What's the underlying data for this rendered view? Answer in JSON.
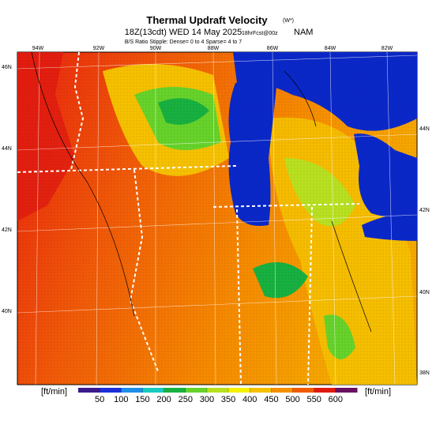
{
  "header": {
    "title": "Thermal Updraft Velocity",
    "title_unit": "(W*)",
    "valid_time": "18Z(13cdt) WED 14 May 2025",
    "forecast": "18hrFcst@00z",
    "model": "NAM",
    "stipple_note": "B/S Ratio Stipple: Dense= 0 to 4  Sparse= 4 to 7"
  },
  "map": {
    "lon_labels": [
      "94W",
      "92W",
      "90W",
      "88W",
      "86W",
      "84W",
      "82W"
    ],
    "lat_labels_left": [
      "46N",
      "44N",
      "42N",
      "40N"
    ],
    "lat_labels_right": [
      "44N",
      "42N",
      "40N",
      "38N"
    ]
  },
  "colorbar": {
    "unit_left": "[ft/min]",
    "unit_right": "[ft/min]",
    "lim": [
      0,
      650
    ],
    "ticks": [
      50,
      100,
      150,
      200,
      250,
      300,
      350,
      400,
      450,
      500,
      550,
      600
    ],
    "colors": [
      "#3a1a8c",
      "#1c2fd8",
      "#1e8ee8",
      "#19c9c0",
      "#18b040",
      "#66d22a",
      "#b8e020",
      "#f5f000",
      "#f5c000",
      "#f59000",
      "#f05a00",
      "#e01a10",
      "#6a1060"
    ]
  }
}
